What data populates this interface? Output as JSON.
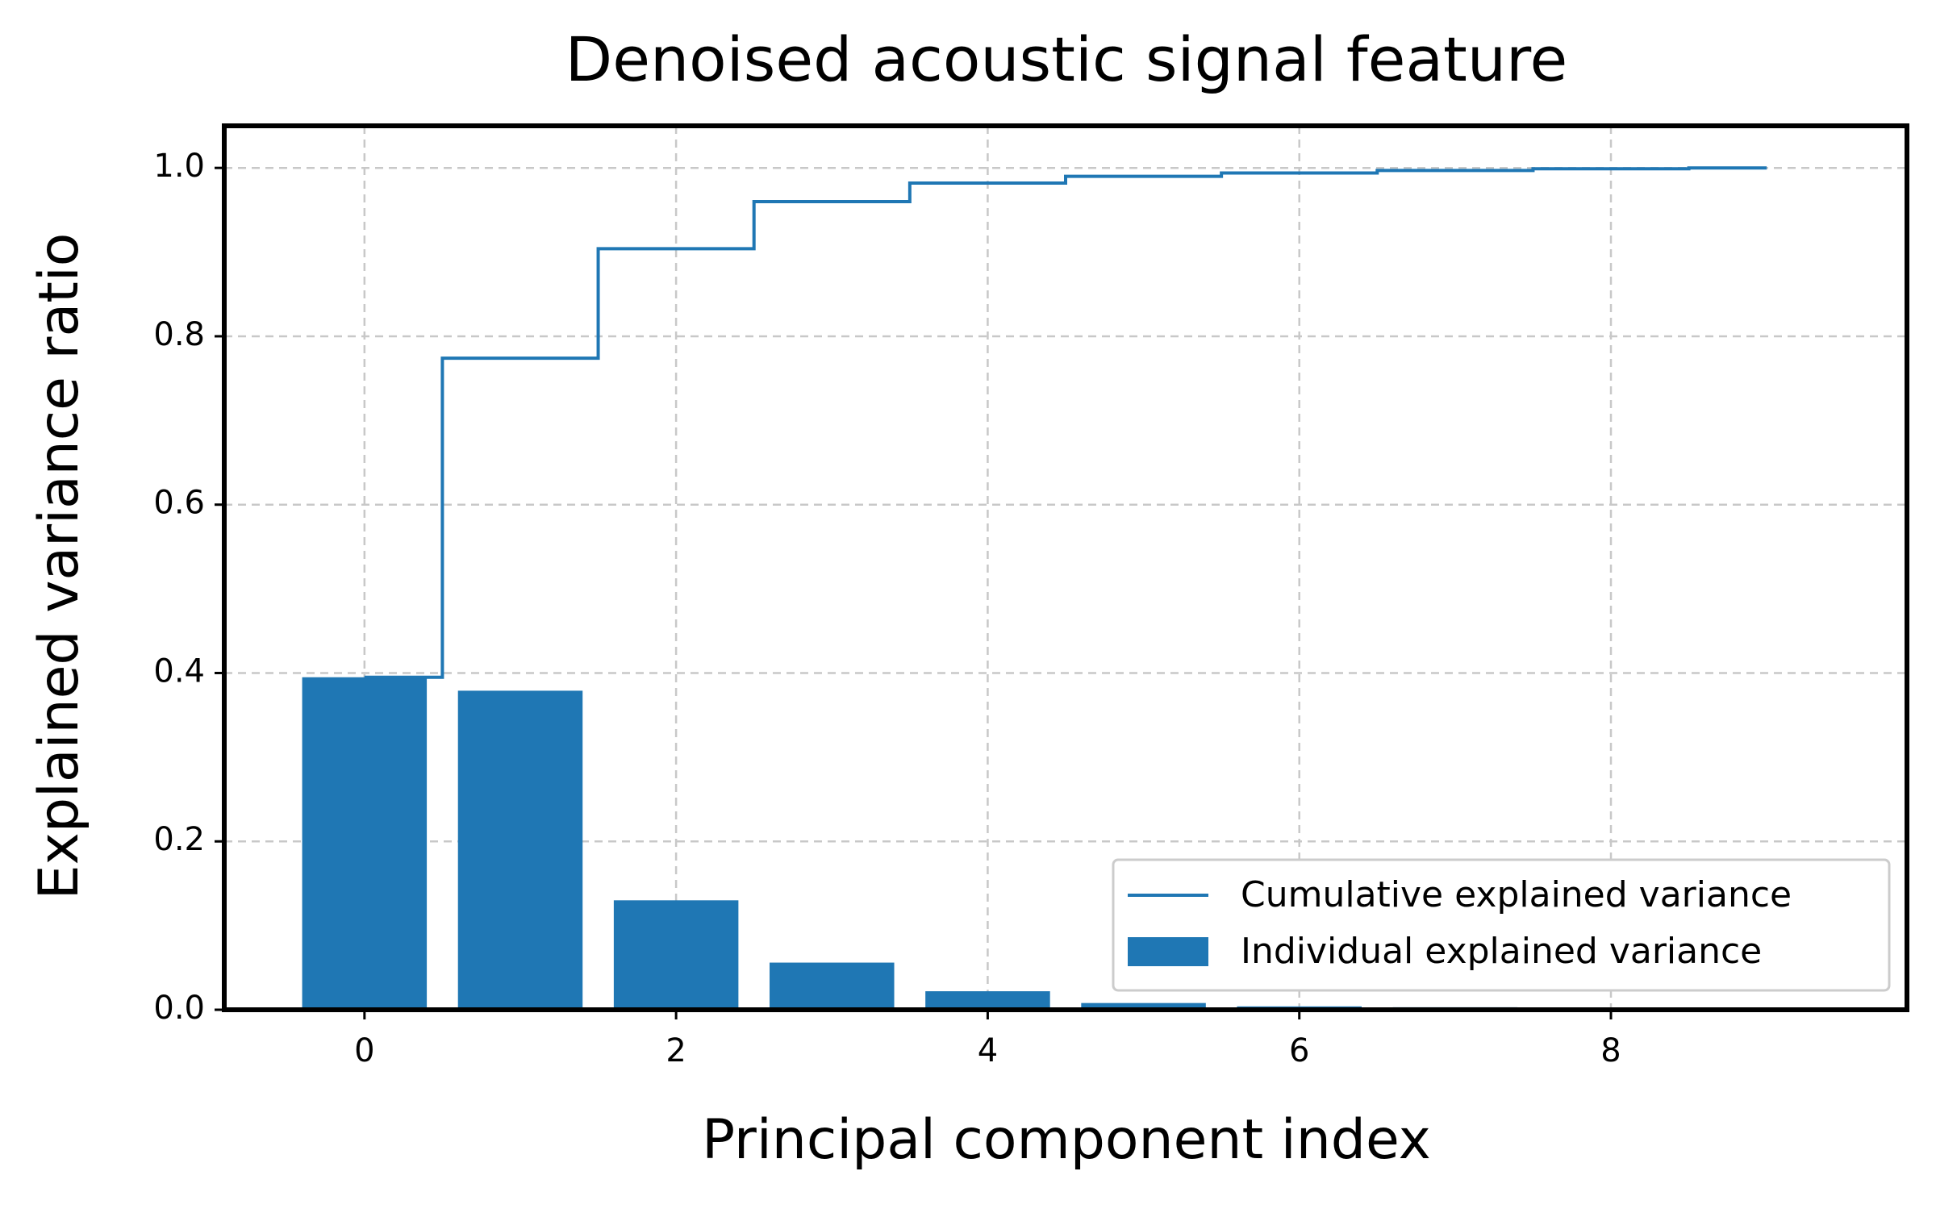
{
  "chart_data": {
    "type": "bar",
    "title": "Denoised acoustic signal feature",
    "xlabel": "Principal component index",
    "ylabel": "Explained variance ratio",
    "xlim": [
      -0.9,
      9.9
    ],
    "ylim": [
      0.0,
      1.05
    ],
    "xticks": [
      "0",
      "2",
      "4",
      "6",
      "8"
    ],
    "xtick_values": [
      0,
      2,
      4,
      6,
      8
    ],
    "yticks": [
      "0.0",
      "0.2",
      "0.4",
      "0.6",
      "0.8",
      "1.0"
    ],
    "ytick_values": [
      0.0,
      0.2,
      0.4,
      0.6,
      0.8,
      1.0
    ],
    "grid": true,
    "legend_position": "lower-right",
    "colors": {
      "series": "#1f77b4",
      "grid": "#c8c8c8",
      "frame": "#000000"
    },
    "series": [
      {
        "name": "Individual explained variance",
        "kind": "bar",
        "x": [
          0,
          1,
          2,
          3,
          4,
          5,
          6,
          7,
          8,
          9
        ],
        "values": [
          0.395,
          0.379,
          0.13,
          0.056,
          0.022,
          0.008,
          0.004,
          0.003,
          0.002,
          0.001
        ]
      },
      {
        "name": "Cumulative explained variance",
        "kind": "step",
        "x": [
          0,
          1,
          2,
          3,
          4,
          5,
          6,
          7,
          8,
          9
        ],
        "values": [
          0.395,
          0.774,
          0.904,
          0.96,
          0.982,
          0.99,
          0.994,
          0.997,
          0.999,
          1.0
        ]
      }
    ]
  }
}
